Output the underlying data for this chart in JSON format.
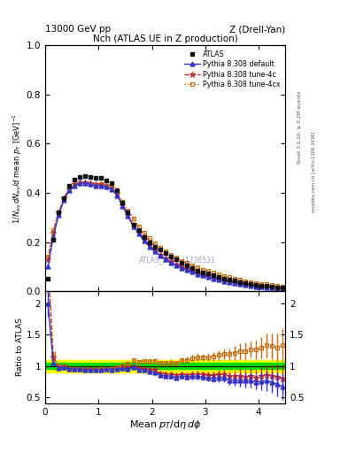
{
  "title_left": "13000 GeV pp",
  "title_right": "Z (Drell-Yan)",
  "plot_title": "Nch (ATLAS UE in Z production)",
  "xlabel": "Mean $p_T$/d$\\eta\\,d\\phi$",
  "ylabel_main": "$1/N_\\mathrm{ev}\\,dN_\\mathrm{ev}/d$ mean $p_T$ [GeV]$^{-1}$",
  "ylabel_ratio": "Ratio to ATLAS",
  "watermark": "ATLAS_2019_I1736531",
  "rivet_label": "Rivet 3.1.10, ≥ 3.2M events",
  "mcplots_label": "mcplots.cern.ch [arXiv:1306.3436]",
  "atlas_x": [
    0.05,
    0.15,
    0.25,
    0.35,
    0.45,
    0.55,
    0.65,
    0.75,
    0.85,
    0.95,
    1.05,
    1.15,
    1.25,
    1.35,
    1.45,
    1.55,
    1.65,
    1.75,
    1.85,
    1.95,
    2.05,
    2.15,
    2.25,
    2.35,
    2.45,
    2.55,
    2.65,
    2.75,
    2.85,
    2.95,
    3.05,
    3.15,
    3.25,
    3.35,
    3.45,
    3.55,
    3.65,
    3.75,
    3.85,
    3.95,
    4.05,
    4.15,
    4.25,
    4.35,
    4.45
  ],
  "atlas_y": [
    0.05,
    0.21,
    0.32,
    0.38,
    0.43,
    0.455,
    0.465,
    0.47,
    0.465,
    0.46,
    0.46,
    0.45,
    0.44,
    0.41,
    0.36,
    0.32,
    0.27,
    0.25,
    0.22,
    0.2,
    0.18,
    0.17,
    0.155,
    0.14,
    0.13,
    0.115,
    0.105,
    0.095,
    0.085,
    0.078,
    0.072,
    0.065,
    0.058,
    0.052,
    0.048,
    0.043,
    0.038,
    0.034,
    0.03,
    0.027,
    0.024,
    0.021,
    0.019,
    0.017,
    0.015
  ],
  "atlas_yerr": [
    0.005,
    0.008,
    0.007,
    0.007,
    0.007,
    0.007,
    0.007,
    0.007,
    0.007,
    0.007,
    0.007,
    0.007,
    0.007,
    0.007,
    0.007,
    0.007,
    0.006,
    0.006,
    0.006,
    0.006,
    0.005,
    0.005,
    0.005,
    0.005,
    0.004,
    0.004,
    0.004,
    0.004,
    0.004,
    0.003,
    0.003,
    0.003,
    0.003,
    0.003,
    0.003,
    0.003,
    0.003,
    0.003,
    0.002,
    0.002,
    0.002,
    0.002,
    0.002,
    0.002,
    0.002
  ],
  "py_default_x": [
    0.05,
    0.15,
    0.25,
    0.35,
    0.45,
    0.55,
    0.65,
    0.75,
    0.85,
    0.95,
    1.05,
    1.15,
    1.25,
    1.35,
    1.45,
    1.55,
    1.65,
    1.75,
    1.85,
    1.95,
    2.05,
    2.15,
    2.25,
    2.35,
    2.45,
    2.55,
    2.65,
    2.75,
    2.85,
    2.95,
    3.05,
    3.15,
    3.25,
    3.35,
    3.45,
    3.55,
    3.65,
    3.75,
    3.85,
    3.95,
    4.05,
    4.15,
    4.25,
    4.35,
    4.45
  ],
  "py_default_y": [
    0.1,
    0.22,
    0.31,
    0.37,
    0.41,
    0.43,
    0.44,
    0.44,
    0.435,
    0.43,
    0.43,
    0.425,
    0.415,
    0.39,
    0.345,
    0.305,
    0.265,
    0.235,
    0.205,
    0.182,
    0.162,
    0.145,
    0.13,
    0.117,
    0.106,
    0.096,
    0.087,
    0.079,
    0.071,
    0.064,
    0.058,
    0.052,
    0.047,
    0.042,
    0.037,
    0.033,
    0.029,
    0.026,
    0.023,
    0.02,
    0.018,
    0.016,
    0.014,
    0.012,
    0.01
  ],
  "py_default_yerr": [
    0.003,
    0.004,
    0.004,
    0.004,
    0.004,
    0.004,
    0.004,
    0.004,
    0.004,
    0.004,
    0.004,
    0.004,
    0.004,
    0.004,
    0.004,
    0.004,
    0.003,
    0.003,
    0.003,
    0.003,
    0.003,
    0.003,
    0.003,
    0.003,
    0.003,
    0.003,
    0.003,
    0.003,
    0.003,
    0.003,
    0.003,
    0.003,
    0.003,
    0.003,
    0.003,
    0.003,
    0.003,
    0.003,
    0.003,
    0.003,
    0.003,
    0.003,
    0.003,
    0.003,
    0.003
  ],
  "py_4c_x": [
    0.05,
    0.15,
    0.25,
    0.35,
    0.45,
    0.55,
    0.65,
    0.75,
    0.85,
    0.95,
    1.05,
    1.15,
    1.25,
    1.35,
    1.45,
    1.55,
    1.65,
    1.75,
    1.85,
    1.95,
    2.05,
    2.15,
    2.25,
    2.35,
    2.45,
    2.55,
    2.65,
    2.75,
    2.85,
    2.95,
    3.05,
    3.15,
    3.25,
    3.35,
    3.45,
    3.55,
    3.65,
    3.75,
    3.85,
    3.95,
    4.05,
    4.15,
    4.25,
    4.35,
    4.45
  ],
  "py_4c_y": [
    0.13,
    0.24,
    0.32,
    0.38,
    0.415,
    0.435,
    0.445,
    0.445,
    0.44,
    0.435,
    0.435,
    0.43,
    0.42,
    0.395,
    0.35,
    0.31,
    0.27,
    0.24,
    0.21,
    0.188,
    0.168,
    0.15,
    0.135,
    0.122,
    0.11,
    0.1,
    0.09,
    0.082,
    0.074,
    0.067,
    0.061,
    0.055,
    0.05,
    0.045,
    0.04,
    0.036,
    0.032,
    0.028,
    0.025,
    0.022,
    0.02,
    0.018,
    0.016,
    0.014,
    0.012
  ],
  "py_4c_yerr": [
    0.003,
    0.004,
    0.004,
    0.004,
    0.004,
    0.004,
    0.004,
    0.004,
    0.004,
    0.004,
    0.004,
    0.004,
    0.004,
    0.004,
    0.004,
    0.004,
    0.003,
    0.003,
    0.003,
    0.003,
    0.003,
    0.003,
    0.003,
    0.003,
    0.003,
    0.003,
    0.003,
    0.003,
    0.003,
    0.003,
    0.003,
    0.003,
    0.003,
    0.003,
    0.003,
    0.003,
    0.003,
    0.003,
    0.003,
    0.003,
    0.003,
    0.003,
    0.003,
    0.003,
    0.003
  ],
  "py_4cx_x": [
    0.05,
    0.15,
    0.25,
    0.35,
    0.45,
    0.55,
    0.65,
    0.75,
    0.85,
    0.95,
    1.05,
    1.15,
    1.25,
    1.35,
    1.45,
    1.55,
    1.65,
    1.75,
    1.85,
    1.95,
    2.05,
    2.15,
    2.25,
    2.35,
    2.45,
    2.55,
    2.65,
    2.75,
    2.85,
    2.95,
    3.05,
    3.15,
    3.25,
    3.35,
    3.45,
    3.55,
    3.65,
    3.75,
    3.85,
    3.95,
    4.05,
    4.15,
    4.25,
    4.35,
    4.45
  ],
  "py_4cx_y": [
    0.14,
    0.25,
    0.32,
    0.375,
    0.41,
    0.43,
    0.44,
    0.44,
    0.435,
    0.43,
    0.435,
    0.43,
    0.42,
    0.4,
    0.365,
    0.33,
    0.295,
    0.265,
    0.238,
    0.215,
    0.195,
    0.178,
    0.162,
    0.148,
    0.136,
    0.125,
    0.115,
    0.106,
    0.097,
    0.089,
    0.082,
    0.075,
    0.068,
    0.062,
    0.057,
    0.052,
    0.047,
    0.042,
    0.038,
    0.034,
    0.031,
    0.028,
    0.025,
    0.022,
    0.02
  ],
  "py_4cx_yerr": [
    0.003,
    0.004,
    0.004,
    0.004,
    0.004,
    0.004,
    0.004,
    0.004,
    0.004,
    0.004,
    0.004,
    0.004,
    0.004,
    0.004,
    0.004,
    0.004,
    0.003,
    0.003,
    0.003,
    0.003,
    0.003,
    0.003,
    0.003,
    0.003,
    0.003,
    0.003,
    0.003,
    0.003,
    0.003,
    0.003,
    0.003,
    0.003,
    0.003,
    0.003,
    0.003,
    0.003,
    0.003,
    0.003,
    0.003,
    0.003,
    0.003,
    0.003,
    0.003,
    0.003,
    0.003
  ],
  "color_default": "#3333cc",
  "color_4c": "#cc2222",
  "color_4cx": "#cc6600",
  "color_atlas": "#111111",
  "band_green_inner": 0.05,
  "band_yellow_outer": 0.1,
  "xlim": [
    0,
    4.5
  ],
  "ylim_main": [
    0,
    1.0
  ],
  "ylim_ratio": [
    0.4,
    2.2
  ],
  "ratio_yticks": [
    0.5,
    1.0,
    1.5,
    2.0
  ],
  "main_yticks": [
    0.0,
    0.2,
    0.4,
    0.6,
    0.8,
    1.0
  ]
}
